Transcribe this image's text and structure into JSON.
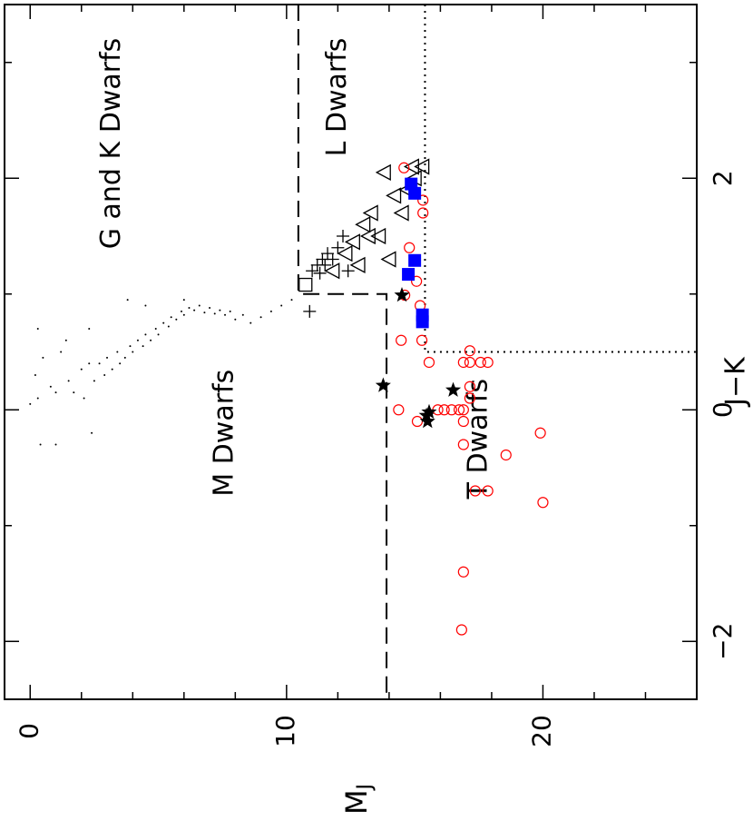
{
  "chart_data": {
    "type": "scatter",
    "xlabel": "M",
    "xlabel_sub": "J",
    "ylabel": "J−K",
    "xlim": [
      -1,
      26
    ],
    "ylim": [
      -2.5,
      3.5
    ],
    "xticks": [
      0,
      10,
      20
    ],
    "xminorticks": [
      2,
      4,
      6,
      8,
      12,
      14,
      16,
      18,
      22,
      24
    ],
    "yticks": [
      {
        "value": -2,
        "label": "−2"
      },
      0,
      2
    ],
    "yminorticks": [
      -1,
      1,
      3
    ],
    "regions": [
      {
        "label": "G and K Dwarfs",
        "x": 3.2,
        "y": 2.3
      },
      {
        "label": "L Dwarfs",
        "x": 12.0,
        "y": 2.7
      },
      {
        "label": "M Dwarfs",
        "x": 7.6,
        "y": -0.2
      },
      {
        "label": "T Dwarfs",
        "x": 17.5,
        "y": -0.25
      }
    ],
    "boundaries": [
      {
        "style": "dashed",
        "x": [
          10.46,
          10.46,
          13.9,
          13.9
        ],
        "values": [
          3.5,
          1.0,
          1.0,
          -2.5
        ]
      },
      {
        "style": "dotted",
        "x": [
          15.4,
          15.4,
          26
        ],
        "values": [
          3.5,
          0.5,
          0.5
        ]
      }
    ],
    "series": [
      {
        "marker": "dot",
        "color": "#000000",
        "x": [
          0,
          0.2,
          0.3,
          0.5,
          0.8,
          1.0,
          1.2,
          1.4,
          1.5,
          1.7,
          2.0,
          2.1,
          2.3,
          2.4,
          2.5,
          2.7,
          2.9,
          3.0,
          3.2,
          3.4,
          3.5,
          3.7,
          3.9,
          4.0,
          4.2,
          4.4,
          4.5,
          4.7,
          4.9,
          5.0,
          5.2,
          5.4,
          5.5,
          5.7,
          5.9,
          6.0,
          6.2,
          6.4,
          6.6,
          6.8,
          7.0,
          7.2,
          7.4,
          7.6,
          7.8,
          8.0,
          8.3,
          8.6,
          9.0,
          9.4,
          9.8,
          10.2,
          1.0,
          0.4,
          4.5,
          3.8,
          6.0,
          2.3,
          0.3
        ],
        "values": [
          0.05,
          0.3,
          0.1,
          0.45,
          0.2,
          -0.3,
          0.5,
          0.6,
          0.25,
          0.15,
          0.35,
          0.1,
          0.4,
          -0.2,
          0.25,
          0.4,
          0.3,
          0.45,
          0.35,
          0.5,
          0.4,
          0.45,
          0.55,
          0.5,
          0.6,
          0.55,
          0.65,
          0.6,
          0.7,
          0.65,
          0.75,
          0.72,
          0.8,
          0.78,
          0.85,
          0.82,
          0.88,
          0.86,
          0.9,
          0.84,
          0.88,
          0.83,
          0.86,
          0.82,
          0.85,
          0.78,
          0.82,
          0.75,
          0.8,
          0.85,
          0.9,
          0.95,
          0.15,
          -0.3,
          0.9,
          0.95,
          0.95,
          0.7,
          0.7
        ]
      },
      {
        "marker": "plus",
        "color": "#000000",
        "x": [
          10.9,
          11.0,
          11.2,
          11.4,
          11.6,
          11.8,
          12.0,
          12.2,
          11.5,
          11.3,
          12.4
        ],
        "values": [
          0.85,
          1.2,
          1.25,
          1.3,
          1.35,
          1.3,
          1.4,
          1.5,
          1.25,
          1.18,
          1.2
        ]
      },
      {
        "marker": "square-open",
        "color": "#000000",
        "x": [
          10.74
        ],
        "values": [
          1.08
        ]
      },
      {
        "marker": "triangle",
        "color": "#000000",
        "x": [
          11.8,
          12.3,
          12.6,
          13.0,
          13.2,
          13.3,
          13.6,
          12.8,
          14.0,
          14.2,
          14.7,
          15.0,
          15.3,
          14.9,
          14.5,
          13.8
        ],
        "values": [
          1.2,
          1.35,
          1.45,
          1.6,
          1.5,
          1.7,
          1.5,
          1.25,
          1.3,
          1.85,
          1.9,
          2.0,
          2.1,
          2.1,
          1.7,
          2.05
        ]
      },
      {
        "marker": "circle-open",
        "color": "#ff0000",
        "x": [
          14.58,
          15.32,
          15.32,
          14.79,
          15.07,
          14.61,
          15.21,
          14.47,
          15.28,
          15.56,
          17.15,
          17.15,
          16.9,
          17.57,
          17.85,
          14.37,
          15.1,
          15.9,
          16.15,
          16.44,
          16.73,
          16.9,
          17.15,
          17.15,
          16.9,
          16.9,
          17.36,
          17.85,
          18.56,
          19.9,
          20.0,
          16.9,
          16.83
        ],
        "values": [
          2.09,
          1.81,
          1.7,
          1.4,
          1.11,
          0.99,
          0.9,
          0.6,
          0.6,
          0.41,
          0.51,
          0.41,
          0.41,
          0.41,
          0.41,
          0,
          -0.1,
          0,
          0,
          0,
          0,
          0,
          0.2,
          0.1,
          -0.1,
          -0.3,
          -0.7,
          -0.7,
          -0.39,
          -0.2,
          -0.8,
          -1.4,
          -1.9
        ]
      },
      {
        "marker": "square-filled",
        "color": "#0000ff",
        "x": [
          14.86,
          15.0,
          15.0,
          14.75,
          15.3,
          15.3
        ],
        "values": [
          1.95,
          1.87,
          1.29,
          1.17,
          0.82,
          0.76
        ]
      },
      {
        "marker": "star",
        "color": "#000000",
        "x": [
          14.5,
          13.77,
          15.46,
          15.5,
          16.5,
          15.56
        ],
        "values": [
          0.99,
          0.21,
          -0.05,
          -0.1,
          0.17,
          -0.02
        ]
      }
    ]
  }
}
